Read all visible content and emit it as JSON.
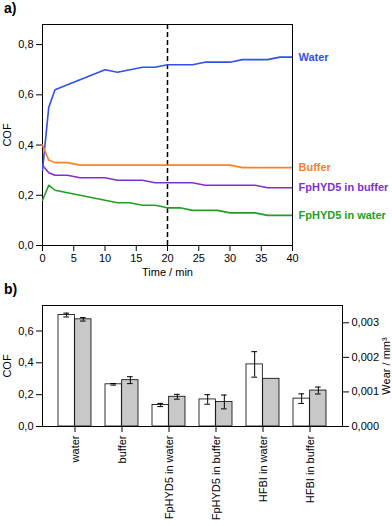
{
  "chart_data": [
    {
      "type": "line",
      "title": "a)",
      "xlabel": "Time / min",
      "ylabel": "COF",
      "x": [
        0,
        1,
        2,
        4,
        6,
        8,
        10,
        12,
        14,
        16,
        18,
        20,
        22,
        24,
        26,
        28,
        30,
        32,
        34,
        36,
        38,
        40
      ],
      "series": [
        {
          "name": "Water",
          "color": "#3050f0",
          "values": [
            0.3,
            0.55,
            0.62,
            0.64,
            0.66,
            0.68,
            0.7,
            0.69,
            0.7,
            0.71,
            0.71,
            0.72,
            0.72,
            0.72,
            0.73,
            0.73,
            0.73,
            0.74,
            0.74,
            0.74,
            0.75,
            0.75
          ]
        },
        {
          "name": "Buffer",
          "color": "#ff8020",
          "values": [
            0.4,
            0.34,
            0.33,
            0.33,
            0.32,
            0.32,
            0.32,
            0.32,
            0.32,
            0.32,
            0.32,
            0.32,
            0.32,
            0.32,
            0.32,
            0.32,
            0.32,
            0.31,
            0.31,
            0.31,
            0.31,
            0.31
          ]
        },
        {
          "name": "FpHYD5 in buffer",
          "color": "#8030d0",
          "values": [
            0.32,
            0.29,
            0.28,
            0.28,
            0.27,
            0.27,
            0.27,
            0.26,
            0.26,
            0.26,
            0.25,
            0.25,
            0.25,
            0.25,
            0.24,
            0.24,
            0.24,
            0.24,
            0.24,
            0.23,
            0.23,
            0.23
          ]
        },
        {
          "name": "FpHYD5 in water",
          "color": "#20a020",
          "values": [
            0.18,
            0.24,
            0.22,
            0.21,
            0.2,
            0.19,
            0.18,
            0.17,
            0.17,
            0.16,
            0.16,
            0.15,
            0.15,
            0.14,
            0.14,
            0.14,
            0.13,
            0.13,
            0.13,
            0.12,
            0.12,
            0.12
          ]
        }
      ],
      "xlim": [
        0,
        40
      ],
      "xticks": [
        0,
        5,
        10,
        15,
        20,
        25,
        30,
        35,
        40
      ],
      "ylim": [
        0,
        0.88
      ],
      "yticks": [
        {
          "value": 0,
          "label": "0,0"
        },
        {
          "value": 0.2,
          "label": "0,2"
        },
        {
          "value": 0.4,
          "label": "0,4"
        },
        {
          "value": 0.6,
          "label": "0,6"
        },
        {
          "value": 0.8,
          "label": "0,8"
        }
      ],
      "vline": {
        "x": 20,
        "line_style": "dashed"
      }
    },
    {
      "type": "bar",
      "title": "b)",
      "ylabel": "COF",
      "y2label": "Wear / mm³",
      "categories": [
        "water",
        "buffer",
        "FpHYD5 in water",
        "FpHYD5 in buffer",
        "HFBI in water",
        "HFBI in buffer"
      ],
      "series": [
        {
          "color": "#ffffff",
          "values": [
            0.7,
            0.265,
            0.135,
            0.17,
            0.39,
            0.175
          ],
          "errors": [
            0.012,
            0.005,
            0.01,
            0.03,
            0.08,
            0.03
          ]
        },
        {
          "color": "#c8c8c8",
          "axis": "y2",
          "values": [
            0.0031,
            0.00134,
            0.00086,
            0.00071,
            0.00138,
            0.00104
          ],
          "errors": [
            5e-05,
            0.0001,
            7e-05,
            0.0002,
            null,
            0.0001
          ]
        }
      ],
      "ylim": [
        0,
        0.76
      ],
      "yticks": [
        {
          "value": 0,
          "label": "0,0"
        },
        {
          "value": 0.2,
          "label": "0,2"
        },
        {
          "value": 0.4,
          "label": "0,4"
        },
        {
          "value": 0.6,
          "label": "0,6"
        }
      ],
      "y2lim": [
        0,
        0.0035
      ],
      "y2ticks": [
        {
          "value": 0,
          "label": "0,000"
        },
        {
          "value": 0.001,
          "label": "0,001"
        },
        {
          "value": 0.002,
          "label": "0,002"
        },
        {
          "value": 0.003,
          "label": "0,003"
        }
      ]
    }
  ]
}
